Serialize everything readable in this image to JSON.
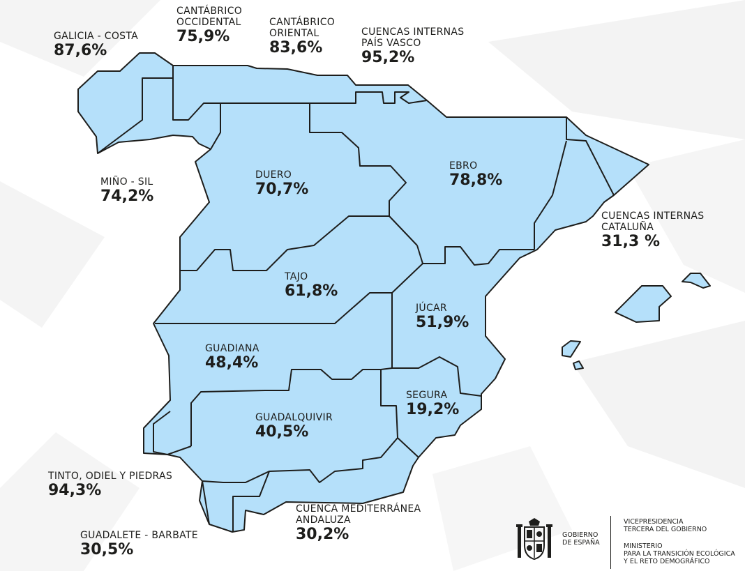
{
  "colors": {
    "basin_fill": "#b5e0fa",
    "border": "#1d1d1b",
    "text": "#1d1d1b",
    "background_facets": "#f2f2f2"
  },
  "basins": [
    {
      "id": "galicia-costa",
      "name_lines": [
        "GALICIA - COSTA"
      ],
      "percent": "87,6%",
      "value": 87.6
    },
    {
      "id": "cantabrico-occidental",
      "name_lines": [
        "CANTÁBRICO",
        "OCCIDENTAL"
      ],
      "percent": "75,9%",
      "value": 75.9
    },
    {
      "id": "cantabrico-oriental",
      "name_lines": [
        "CANTÁBRICO",
        "ORIENTAL"
      ],
      "percent": "83,6%",
      "value": 83.6
    },
    {
      "id": "cuencas-internas-pais-vasco",
      "name_lines": [
        "CUENCAS INTERNAS",
        "PAÍS VASCO"
      ],
      "percent": "95,2%",
      "value": 95.2
    },
    {
      "id": "mino-sil",
      "name_lines": [
        "MIÑO - SIL"
      ],
      "percent": "74,2%",
      "value": 74.2
    },
    {
      "id": "duero",
      "name_lines": [
        "DUERO"
      ],
      "percent": "70,7%",
      "value": 70.7
    },
    {
      "id": "ebro",
      "name_lines": [
        "EBRO"
      ],
      "percent": "78,8%",
      "value": 78.8
    },
    {
      "id": "cuencas-internas-cataluna",
      "name_lines": [
        "CUENCAS INTERNAS",
        "CATALUÑA"
      ],
      "percent": "31,3 %",
      "value": 31.3
    },
    {
      "id": "tajo",
      "name_lines": [
        "TAJO"
      ],
      "percent": "61,8%",
      "value": 61.8
    },
    {
      "id": "jucar",
      "name_lines": [
        "JÚCAR"
      ],
      "percent": "51,9%",
      "value": 51.9
    },
    {
      "id": "guadiana",
      "name_lines": [
        "GUADIANA"
      ],
      "percent": "48,4%",
      "value": 48.4
    },
    {
      "id": "segura",
      "name_lines": [
        "SEGURA"
      ],
      "percent": "19,2%",
      "value": 19.2
    },
    {
      "id": "guadalquivir",
      "name_lines": [
        "GUADALQUIVIR"
      ],
      "percent": "40,5%",
      "value": 40.5
    },
    {
      "id": "tinto-odiel-piedras",
      "name_lines": [
        "TINTO, ODIEL Y PIEDRAS"
      ],
      "percent": "94,3%",
      "value": 94.3
    },
    {
      "id": "cuenca-mediterranea-andaluza",
      "name_lines": [
        "CUENCA MEDITERRÁNEA",
        "ANDALUZA"
      ],
      "percent": "30,2%",
      "value": 30.2
    },
    {
      "id": "guadalete-barbate",
      "name_lines": [
        "GUADALETE - BARBATE"
      ],
      "percent": "30,5%",
      "value": 30.5
    }
  ],
  "footer": {
    "gobierno_lines": [
      "GOBIERNO",
      "DE ESPAÑA"
    ],
    "vicepresidencia_lines": [
      "VICEPRESIDENCIA",
      "TERCERA DEL GOBIERNO"
    ],
    "ministerio_lines": [
      "MINISTERIO",
      "PARA LA TRANSICIÓN ECOLÓGICA",
      "Y EL RETO DEMOGRÁFICO"
    ]
  }
}
